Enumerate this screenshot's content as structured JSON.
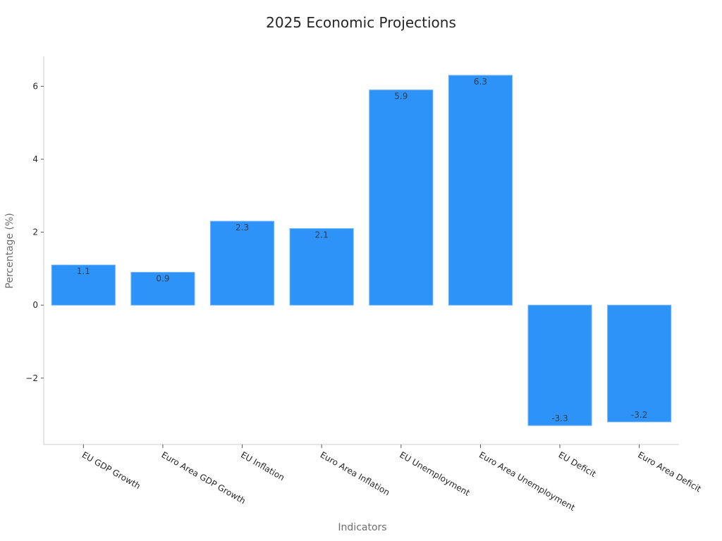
{
  "chart_data": {
    "type": "bar",
    "title": "2025 Economic Projections",
    "xlabel": "Indicators",
    "ylabel": "Percentage (%)",
    "categories": [
      "EU GDP Growth",
      "Euro Area GDP Growth",
      "EU Inflation",
      "Euro Area Inflation",
      "EU Unemployment",
      "Euro Area Unemployment",
      "EU Deficit",
      "Euro Area Deficit"
    ],
    "values": [
      1.1,
      0.9,
      2.3,
      2.1,
      5.9,
      6.3,
      -3.3,
      -3.2
    ],
    "data_labels": [
      "1.1",
      "0.9",
      "2.3",
      "2.1",
      "5.9",
      "6.3",
      "-3.3",
      "-3.2"
    ],
    "yticks": [
      -2,
      0,
      2,
      4,
      6
    ],
    "ytick_labels": [
      "−2",
      "0",
      "2",
      "4",
      "6"
    ],
    "ylim": [
      -3.82,
      6.82
    ],
    "grid": false,
    "legend": null,
    "bar_color": "#2e93f8",
    "xtick_rotation": -30
  }
}
